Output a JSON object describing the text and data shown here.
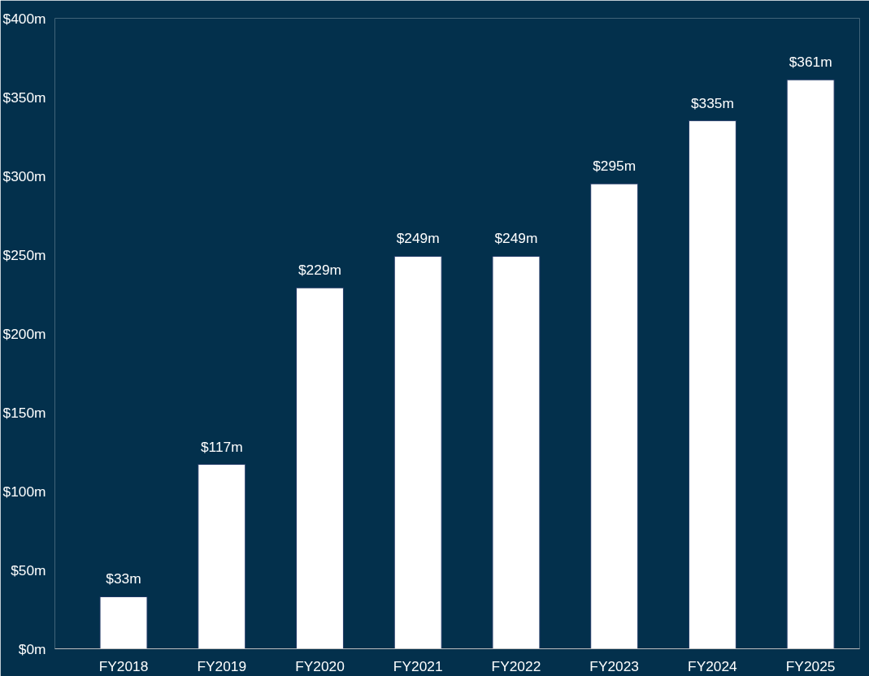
{
  "chart_data": {
    "type": "bar",
    "categories": [
      "FY2018",
      "FY2019",
      "FY2020",
      "FY2021",
      "FY2022",
      "FY2023",
      "FY2024",
      "FY2025"
    ],
    "values": [
      33,
      117,
      229,
      249,
      249,
      295,
      335,
      361
    ],
    "value_labels": [
      "$33m",
      "$117m",
      "$229m",
      "$249m",
      "$249m",
      "$295m",
      "$335m",
      "$361m"
    ],
    "color": "#ffffff",
    "ylim": [
      0,
      400
    ],
    "yticks": [
      {
        "value": 0,
        "label": "$0m"
      },
      {
        "value": 50,
        "label": "$50m"
      },
      {
        "value": 100,
        "label": "$100m"
      },
      {
        "value": 150,
        "label": "$150m"
      },
      {
        "value": 200,
        "label": "$200m"
      },
      {
        "value": 250,
        "label": "$250m"
      },
      {
        "value": 300,
        "label": "$300m"
      },
      {
        "value": 350,
        "label": "$350m"
      },
      {
        "value": 400,
        "label": "$400m"
      }
    ],
    "grid": false
  }
}
